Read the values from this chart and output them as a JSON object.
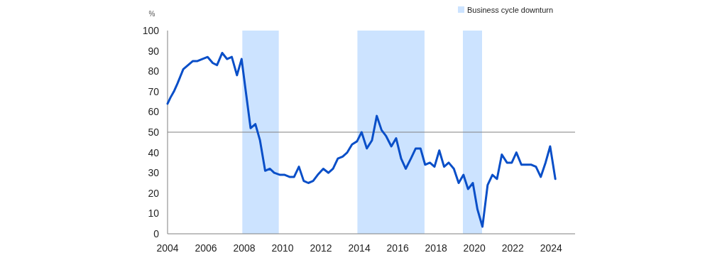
{
  "chart_data": {
    "type": "line",
    "ylabel": "%",
    "x": [
      2004,
      2004.15,
      2004.33,
      2004.52,
      2004.82,
      2005.07,
      2005.32,
      2005.56,
      2005.81,
      2006.09,
      2006.36,
      2006.58,
      2006.85,
      2007.1,
      2007.35,
      2007.62,
      2007.86,
      2008.08,
      2008.33,
      2008.58,
      2008.82,
      2009.09,
      2009.34,
      2009.56,
      2009.87,
      2010.11,
      2010.36,
      2010.6,
      2010.85,
      2011.1,
      2011.34,
      2011.59,
      2011.83,
      2012.12,
      2012.39,
      2012.63,
      2012.88,
      2013.13,
      2013.37,
      2013.62,
      2013.88,
      2014.12,
      2014.39,
      2014.66,
      2014.91,
      2015.16,
      2015.4,
      2015.67,
      2015.92,
      2016.18,
      2016.42,
      2016.69,
      2016.94,
      2017.19,
      2017.43,
      2017.68,
      2017.92,
      2018.17,
      2018.42,
      2018.66,
      2018.93,
      2019.18,
      2019.43,
      2019.67,
      2019.92,
      2020.16,
      2020.42,
      2020.69,
      2020.94,
      2021.18,
      2021.43,
      2021.7,
      2021.95,
      2022.19,
      2022.45,
      2022.72,
      2022.97,
      2023.21,
      2023.46,
      2023.71,
      2023.95,
      2024.22
    ],
    "series": [
      {
        "color": "#0a4fc8",
        "values": [
          64,
          67,
          70,
          74,
          81,
          83,
          85,
          85,
          86,
          87,
          84,
          83,
          89,
          86,
          87,
          78,
          86,
          70,
          52,
          54,
          46,
          31,
          32,
          30,
          29,
          29,
          28,
          28,
          33,
          26,
          25,
          26,
          29,
          32,
          30,
          32,
          37,
          38,
          40,
          44,
          45.5,
          50,
          42,
          46,
          58,
          51,
          48,
          43,
          47,
          37,
          32,
          37,
          42,
          42,
          34,
          35,
          33,
          41,
          33,
          35,
          32,
          25,
          29,
          22,
          25,
          12,
          3.5,
          24,
          29,
          27,
          39,
          35,
          35,
          40,
          34,
          34,
          34,
          33,
          28,
          35,
          43,
          27
        ]
      }
    ],
    "xlim": [
      2004,
      2025.25
    ],
    "xticks": [
      2004,
      2006,
      2008,
      2010,
      2012,
      2014,
      2016,
      2018,
      2020,
      2022,
      2024
    ],
    "ylim": [
      0,
      100
    ],
    "yticks": [
      0,
      10,
      20,
      30,
      40,
      50,
      60,
      70,
      80,
      90,
      100
    ],
    "ref_lines": [
      {
        "axis": "y",
        "value": 50,
        "color": "#808080"
      }
    ],
    "bands": [
      {
        "axis": "x",
        "from": 2007.9,
        "to": 2009.8,
        "color": "#cce3ff",
        "label": "Business cycle downturn"
      },
      {
        "axis": "x",
        "from": 2013.9,
        "to": 2017.4,
        "color": "#cce3ff"
      },
      {
        "axis": "x",
        "from": 2019.4,
        "to": 2020.4,
        "color": "#cce3ff"
      }
    ],
    "legend": "top right",
    "grid": false
  }
}
